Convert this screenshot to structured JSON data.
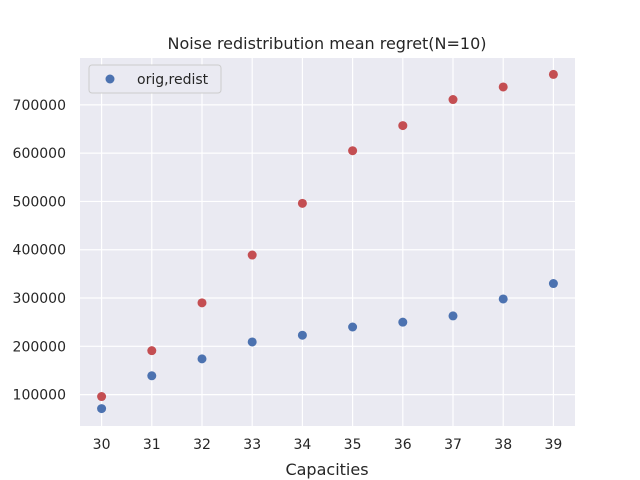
{
  "chart_data": {
    "type": "scatter",
    "title": "Noise redistribution mean regret(N=10)",
    "xlabel": "Capacities",
    "ylabel": "",
    "x": [
      30,
      31,
      32,
      33,
      34,
      35,
      36,
      37,
      38,
      39
    ],
    "xticks": [
      "30",
      "31",
      "32",
      "33",
      "34",
      "35",
      "36",
      "37",
      "38",
      "39"
    ],
    "xlim": [
      29.57,
      39.43
    ],
    "ylim": [
      35000,
      797000
    ],
    "yticks": [
      100000,
      200000,
      300000,
      400000,
      500000,
      600000,
      700000
    ],
    "ytick_labels": [
      "100000",
      "200000",
      "300000",
      "400000",
      "500000",
      "600000",
      "700000"
    ],
    "grid": true,
    "legend_position": "top-left",
    "series": [
      {
        "name": "orig,redist",
        "color": "#4c72b0",
        "values": [
          71000,
          139000,
          174000,
          209000,
          223000,
          240000,
          250000,
          263000,
          298000,
          330000
        ]
      },
      {
        "color": "#c44e52",
        "values": [
          96000,
          191000,
          290000,
          389000,
          496000,
          605000,
          657000,
          711000,
          737000,
          763000
        ]
      }
    ]
  }
}
